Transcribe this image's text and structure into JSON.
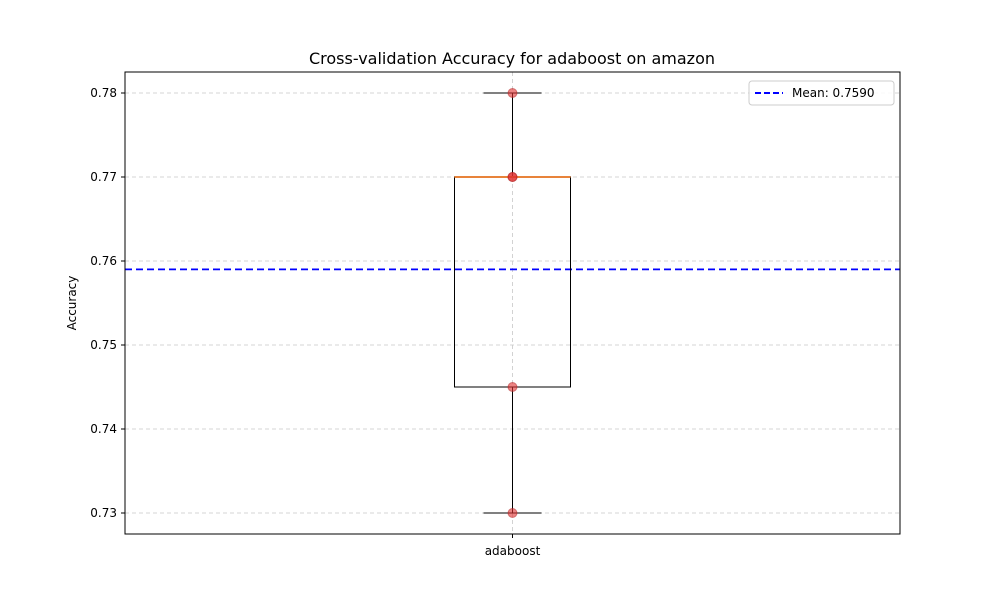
{
  "chart_data": {
    "type": "box",
    "title": "Cross-validation Accuracy for adaboost on amazon",
    "xlabel": "",
    "ylabel": "Accuracy",
    "categories": [
      "adaboost"
    ],
    "ylim": [
      0.7275,
      0.7825
    ],
    "yticks": [
      0.73,
      0.74,
      0.75,
      0.76,
      0.77,
      0.78
    ],
    "ytick_labels": [
      "0.73",
      "0.74",
      "0.75",
      "0.76",
      "0.77",
      "0.78"
    ],
    "grid": true,
    "box": {
      "whisker_low": 0.73,
      "q1": 0.745,
      "median": 0.77,
      "q3": 0.77,
      "whisker_high": 0.78
    },
    "points": [
      0.73,
      0.745,
      0.77,
      0.77,
      0.78
    ],
    "mean_line": {
      "value": 0.759,
      "label": "Mean: 0.7590",
      "color": "#0000ff"
    },
    "legend_position": "top-right",
    "colors": {
      "box": "#000000",
      "median": "#e8833a",
      "points": "#e03030",
      "grid": "#c8c8c8"
    }
  }
}
